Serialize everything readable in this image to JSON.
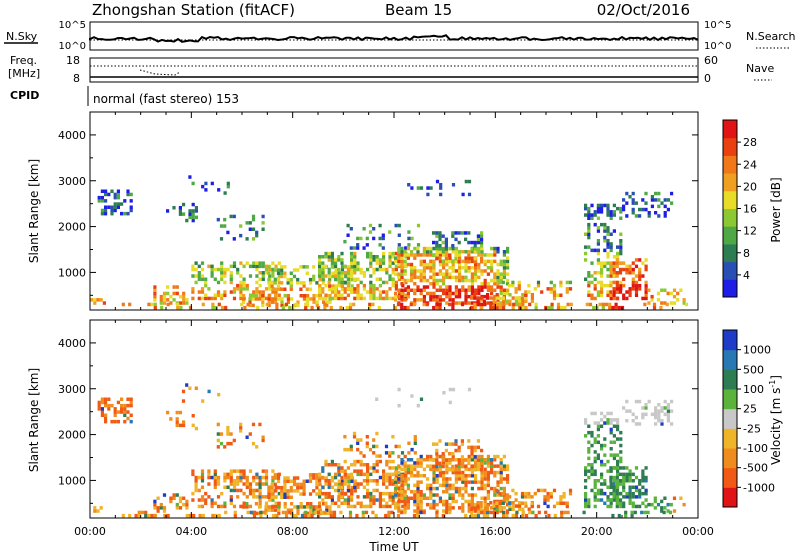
{
  "header": {
    "station": "Zhongshan Station (fitACF)",
    "beam": "Beam 15",
    "date": "02/Oct/2016"
  },
  "top_panels": {
    "nsky": {
      "label": "N.Sky",
      "ticks": [
        "10^5",
        "10^0"
      ],
      "right_label": "N.Search",
      "right_ticks": [
        "10^5",
        "10^0"
      ]
    },
    "freq": {
      "label_line1": "Freq.",
      "label_line2": "[MHz]",
      "ticks": [
        "18",
        "8"
      ],
      "right_label": "Nave",
      "right_ticks": [
        "60",
        "0"
      ]
    },
    "cpid": {
      "label": "CPID",
      "text": "normal (fast stereo) 153"
    }
  },
  "chart_data": [
    {
      "type": "heatmap",
      "name": "power",
      "ylabel": "Slant Range [km]",
      "xlabel": "",
      "yticks": [
        "4000",
        "3000",
        "2000",
        "1000"
      ],
      "ylim": [
        180,
        4500
      ],
      "xlim": [
        0,
        24
      ],
      "colorbar": {
        "label": "Power [dB]",
        "ticks": [
          "28",
          "24",
          "20",
          "16",
          "12",
          "8",
          "4"
        ],
        "range": [
          0,
          32
        ],
        "colors": [
          "#1e1ee6",
          "#2850b4",
          "#2e7d52",
          "#4fa846",
          "#8cc832",
          "#e8dc28",
          "#f0a020",
          "#f07818",
          "#e84010",
          "#e01414"
        ]
      }
    },
    {
      "type": "heatmap",
      "name": "velocity",
      "ylabel": "Slant Range [km]",
      "xlabel": "Time UT",
      "yticks": [
        "4000",
        "3000",
        "2000",
        "1000"
      ],
      "xticks": [
        "00:00",
        "04:00",
        "08:00",
        "12:00",
        "16:00",
        "20:00",
        "00:00"
      ],
      "ylim": [
        180,
        4500
      ],
      "xlim": [
        0,
        24
      ],
      "colorbar": {
        "label": "Velocity [m s",
        "label_sup": "-1",
        "label_end": "]",
        "ticks": [
          "1000",
          "500",
          "100",
          "25",
          "-25",
          "-100",
          "-500",
          "-1000"
        ],
        "colors": [
          "#1e3cc8",
          "#2878b4",
          "#2e7d52",
          "#5ab43c",
          "#c8c8c8",
          "#f0b428",
          "#f08c1e",
          "#f05a14",
          "#e01414"
        ]
      }
    }
  ]
}
